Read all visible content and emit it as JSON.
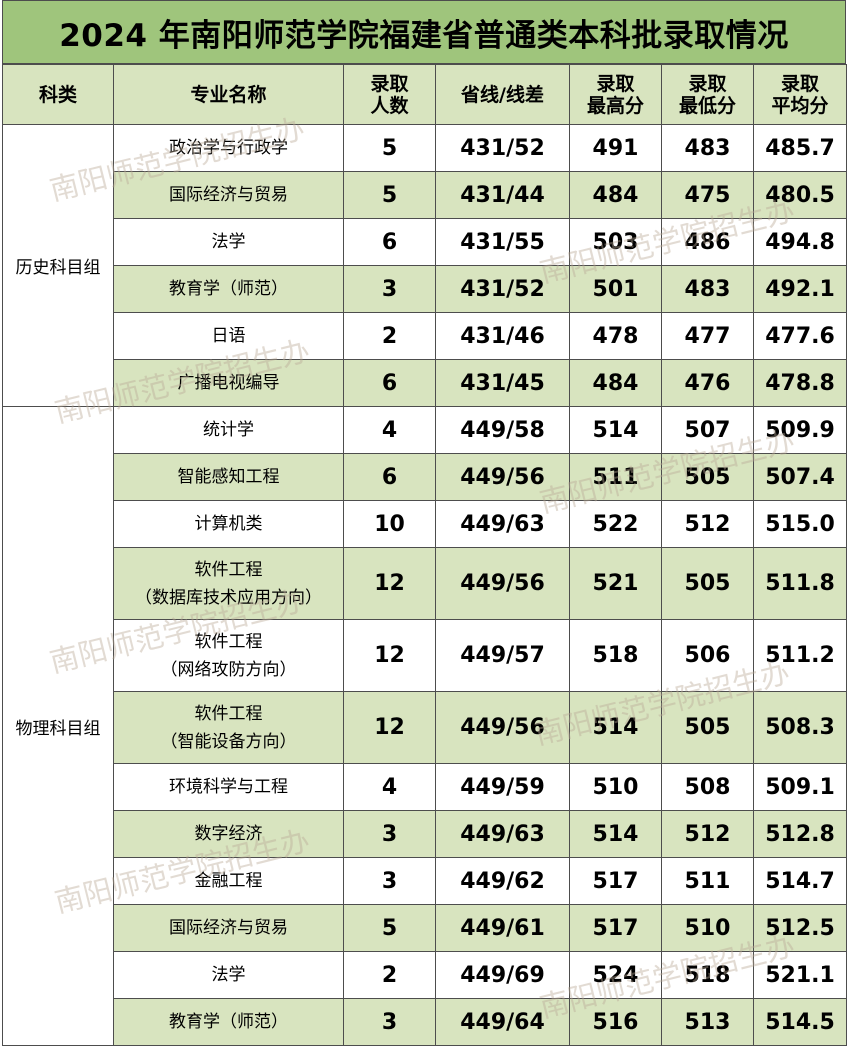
{
  "title": "2024 年南阳师范学院福建省普通类本科批录取情况",
  "headers": {
    "category": "科类",
    "major": "专业名称",
    "admitted": [
      "录取",
      "人数"
    ],
    "line": "省线/线差",
    "max": [
      "录取",
      "最高分"
    ],
    "min": [
      "录取",
      "最低分"
    ],
    "avg": [
      "录取",
      "平均分"
    ]
  },
  "watermark": "南阳师范学院招生办",
  "groups": [
    {
      "category": "历史科目组",
      "rows": [
        {
          "major": [
            "政治学与行政学"
          ],
          "admitted": "5",
          "line": "431/52",
          "max": "491",
          "min": "483",
          "avg": "485.7"
        },
        {
          "major": [
            "国际经济与贸易"
          ],
          "admitted": "5",
          "line": "431/44",
          "max": "484",
          "min": "475",
          "avg": "480.5"
        },
        {
          "major": [
            "法学"
          ],
          "admitted": "6",
          "line": "431/55",
          "max": "503",
          "min": "486",
          "avg": "494.8"
        },
        {
          "major": [
            "教育学（师范）"
          ],
          "admitted": "3",
          "line": "431/52",
          "max": "501",
          "min": "483",
          "avg": "492.1"
        },
        {
          "major": [
            "日语"
          ],
          "admitted": "2",
          "line": "431/46",
          "max": "478",
          "min": "477",
          "avg": "477.6"
        },
        {
          "major": [
            "广播电视编导"
          ],
          "admitted": "6",
          "line": "431/45",
          "max": "484",
          "min": "476",
          "avg": "478.8"
        }
      ]
    },
    {
      "category": "物理科目组",
      "rows": [
        {
          "major": [
            "统计学"
          ],
          "admitted": "4",
          "line": "449/58",
          "max": "514",
          "min": "507",
          "avg": "509.9"
        },
        {
          "major": [
            "智能感知工程"
          ],
          "admitted": "6",
          "line": "449/56",
          "max": "511",
          "min": "505",
          "avg": "507.4"
        },
        {
          "major": [
            "计算机类"
          ],
          "admitted": "10",
          "line": "449/63",
          "max": "522",
          "min": "512",
          "avg": "515.0"
        },
        {
          "major": [
            "软件工程",
            "（数据库技术应用方向）"
          ],
          "admitted": "12",
          "line": "449/56",
          "max": "521",
          "min": "505",
          "avg": "511.8"
        },
        {
          "major": [
            "软件工程",
            "（网络攻防方向）"
          ],
          "admitted": "12",
          "line": "449/57",
          "max": "518",
          "min": "506",
          "avg": "511.2"
        },
        {
          "major": [
            "软件工程",
            "（智能设备方向）"
          ],
          "admitted": "12",
          "line": "449/56",
          "max": "514",
          "min": "505",
          "avg": "508.3"
        },
        {
          "major": [
            "环境科学与工程"
          ],
          "admitted": "4",
          "line": "449/59",
          "max": "510",
          "min": "508",
          "avg": "509.1"
        },
        {
          "major": [
            "数字经济"
          ],
          "admitted": "3",
          "line": "449/63",
          "max": "514",
          "min": "512",
          "avg": "512.8"
        },
        {
          "major": [
            "金融工程"
          ],
          "admitted": "3",
          "line": "449/62",
          "max": "517",
          "min": "511",
          "avg": "514.7"
        },
        {
          "major": [
            "国际经济与贸易"
          ],
          "admitted": "5",
          "line": "449/61",
          "max": "517",
          "min": "510",
          "avg": "512.5"
        },
        {
          "major": [
            "法学"
          ],
          "admitted": "2",
          "line": "449/69",
          "max": "524",
          "min": "518",
          "avg": "521.1"
        },
        {
          "major": [
            "教育学（师范）"
          ],
          "admitted": "3",
          "line": "449/64",
          "max": "516",
          "min": "513",
          "avg": "514.5"
        }
      ]
    }
  ]
}
